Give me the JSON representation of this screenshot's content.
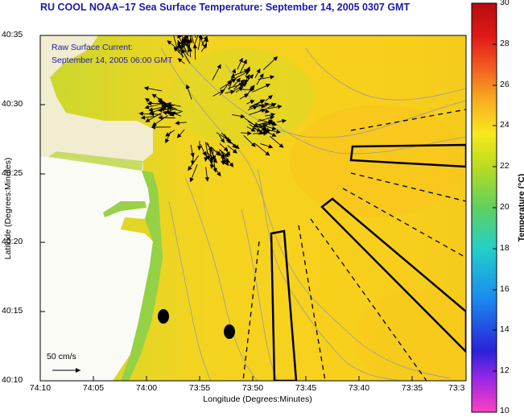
{
  "title": "RU COOL  NOAA−17  Sea Surface Temperature:  September 14, 2005 0307 GMT",
  "legend": {
    "line1": "Raw Surface Current:",
    "line2": "September 14, 2005 06:00 GMT"
  },
  "scale_label": "50 cm/s",
  "axes": {
    "xlabel": "Longitude (Degrees:Minutes)",
    "ylabel": "Latitude (Degrees:Minutes)",
    "yticks": [
      "40:35",
      "40:30",
      "40:25",
      "40:20",
      "40:15",
      "40:10"
    ],
    "xticks": [
      "74:10",
      "74:05",
      "74:00",
      "73:55",
      "73:50",
      "73:45",
      "73:40",
      "73:35",
      "73:3"
    ]
  },
  "colorbar": {
    "label": "Temperature (°C)",
    "ticks": [
      "30",
      "28",
      "26",
      "24",
      "22",
      "20",
      "18",
      "16",
      "14",
      "12",
      "10"
    ],
    "min": 10,
    "max": 30
  },
  "colors": {
    "water_dominant": "#f6d21e",
    "land": "#fbfbf6",
    "coast_green": "#7fd04b",
    "title_blue": "#1a1aa8"
  }
}
